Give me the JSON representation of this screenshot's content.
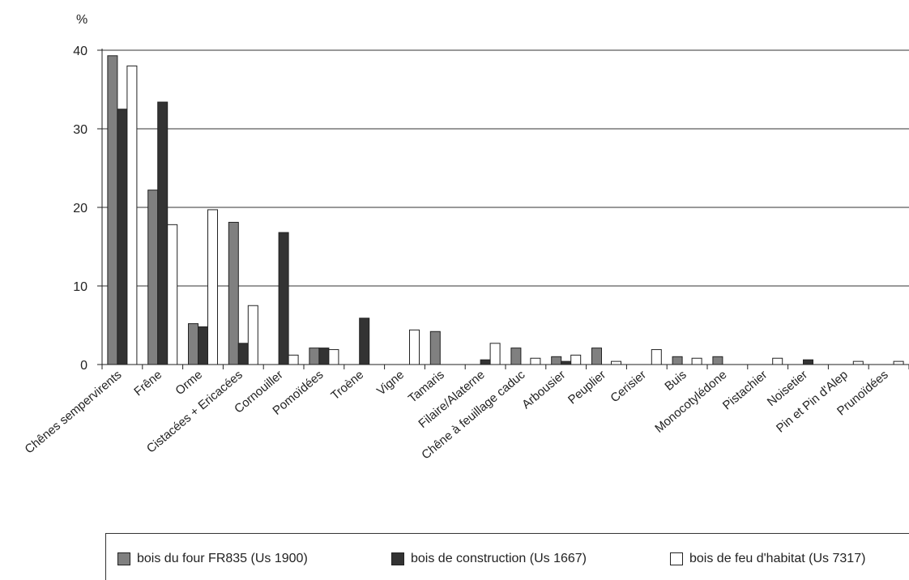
{
  "chart_data": {
    "type": "bar",
    "ylabel": "%",
    "ylim": [
      0,
      40
    ],
    "yticks": [
      "0",
      "10",
      "20",
      "30",
      "40"
    ],
    "grid": true,
    "legend_position": "bottom",
    "categories": [
      "Chênes sempervirents",
      "Frêne",
      "Orme",
      "Cistacées + Ericacées",
      "Cornouiller",
      "Pomoïdées",
      "Troène",
      "Vigne",
      "Tamaris",
      "Filaire/Alaterne",
      "Chêne à feuillage caduc",
      "Arbousier",
      "Peuplier",
      "Cerisier",
      "Buis",
      "Monocotylédone",
      "Pistachier",
      "Noisetier",
      "Pin et Pin d'Alep",
      "Prunoïdées"
    ],
    "series": [
      {
        "name": "bois du four FR835 (Us 1900)",
        "color": "#808080",
        "values": [
          39.3,
          22.2,
          5.2,
          18.1,
          0,
          2.1,
          0,
          0,
          4.2,
          0,
          2.1,
          1.0,
          2.1,
          0,
          1.0,
          1.0,
          0,
          0,
          0,
          0
        ]
      },
      {
        "name": "bois de construction (Us 1667)",
        "color": "#333333",
        "values": [
          32.5,
          33.4,
          4.8,
          2.7,
          16.8,
          2.1,
          5.9,
          0,
          0,
          0.6,
          0,
          0.4,
          0,
          0,
          0,
          0,
          0,
          0.6,
          0,
          0
        ]
      },
      {
        "name": "bois de feu d'habitat (Us 7317)",
        "color": "#ffffff",
        "values": [
          38.0,
          17.8,
          19.7,
          7.5,
          1.2,
          1.9,
          0,
          4.4,
          0,
          2.7,
          0.8,
          1.2,
          0.4,
          1.9,
          0.8,
          0,
          0.8,
          0,
          0.4,
          0.4
        ]
      }
    ]
  }
}
